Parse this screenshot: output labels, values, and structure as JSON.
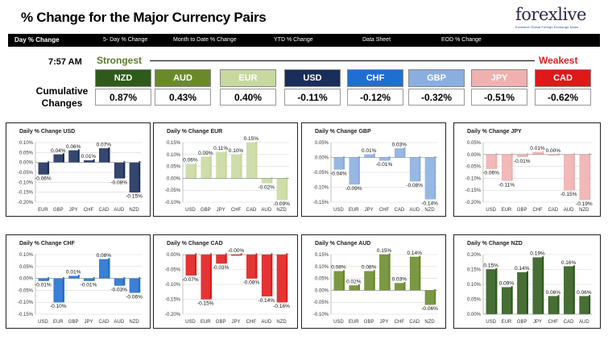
{
  "header": {
    "title": "% Change for the Major Currency Pairs",
    "logo_text": "forexlive",
    "logo_subtitle": "Exclusive Global Foreign Exchange News"
  },
  "nav": {
    "items": [
      "Day % Change",
      "5- Day % Change",
      "Month to Date % Change",
      "YTD % Change",
      "Data Sheet",
      "EOD % Change"
    ]
  },
  "summary": {
    "time": "7:57 AM",
    "strongest_label": "Strongest",
    "weakest_label": "Weakest",
    "cumulative_label_line1": "Cumulative",
    "cumulative_label_line2": "Changes",
    "currencies": [
      {
        "code": "NZD",
        "value": "0.87%",
        "color": "#2e5a1a"
      },
      {
        "code": "AUD",
        "value": "0.43%",
        "color": "#6a8a2a"
      },
      {
        "code": "EUR",
        "value": "0.40%",
        "color": "#c8d8a0"
      },
      {
        "code": "USD",
        "value": "-0.11%",
        "color": "#1a2e5a"
      },
      {
        "code": "CHF",
        "value": "-0.12%",
        "color": "#1f6fd0"
      },
      {
        "code": "GBP",
        "value": "-0.32%",
        "color": "#8aaee0"
      },
      {
        "code": "JPY",
        "value": "-0.51%",
        "color": "#f0b0b0"
      },
      {
        "code": "CAD",
        "value": "-0.62%",
        "color": "#e01818"
      }
    ]
  },
  "chart_data": [
    {
      "type": "bar",
      "title": "Daily % Change USD",
      "color": "#1a2e5a",
      "categories": [
        "EUR",
        "GBP",
        "JPY",
        "CHF",
        "CAD",
        "AUD",
        "NZD"
      ],
      "values": [
        -0.06,
        0.04,
        0.06,
        0.01,
        0.07,
        -0.08,
        -0.15
      ],
      "labels": [
        "-0.06%",
        "0.04%",
        "0.06%",
        "0.01%",
        "0.07%",
        "-0.08%",
        "-0.15%"
      ],
      "ylim": [
        -0.2,
        0.1
      ],
      "ticks": [
        0.1,
        0.05,
        0.0,
        -0.05,
        -0.1,
        -0.15,
        -0.2
      ],
      "tick_labels": [
        "0.10%",
        "0.05%",
        "0.00%",
        "-0.05%",
        "-0.10%",
        "-0.15%",
        "-0.20%"
      ]
    },
    {
      "type": "bar",
      "title": "Daily % Change EUR",
      "color": "#c8d8a0",
      "categories": [
        "USD",
        "GBP",
        "JPY",
        "CHF",
        "CAD",
        "AUD",
        "NZD"
      ],
      "values": [
        0.06,
        0.09,
        0.11,
        0.1,
        0.15,
        -0.02,
        -0.09
      ],
      "labels": [
        "0.06%",
        "0.09%",
        "0.11%",
        "0.10%",
        "0.15%",
        "-0.02%",
        "-0.09%"
      ],
      "ylim": [
        -0.1,
        0.15
      ],
      "ticks": [
        0.15,
        0.1,
        0.05,
        0.0,
        -0.05,
        -0.1
      ],
      "tick_labels": [
        "0.15%",
        "0.10%",
        "0.05%",
        "0.00%",
        "-0.05%",
        "-0.10%"
      ]
    },
    {
      "type": "bar",
      "title": "Daily % Change GBP",
      "color": "#8aaee0",
      "categories": [
        "USD",
        "EUR",
        "JPY",
        "CHF",
        "CAD",
        "AUD",
        "NZD"
      ],
      "values": [
        -0.04,
        -0.09,
        0.01,
        -0.01,
        0.03,
        -0.08,
        -0.14
      ],
      "labels": [
        "-0.04%",
        "-0.09%",
        "0.01%",
        "-0.01%",
        "0.03%",
        "-0.08%",
        "-0.14%"
      ],
      "ylim": [
        -0.15,
        0.05
      ],
      "ticks": [
        0.05,
        0.0,
        -0.05,
        -0.1,
        -0.15
      ],
      "tick_labels": [
        "0.05%",
        "0.00%",
        "-0.05%",
        "-0.10%",
        "-0.15%"
      ]
    },
    {
      "type": "bar",
      "title": "Daily % Change JPY",
      "color": "#f0b0b0",
      "categories": [
        "USD",
        "EUR",
        "GBP",
        "CHF",
        "CAD",
        "AUD",
        "NZD"
      ],
      "values": [
        -0.06,
        -0.11,
        -0.01,
        0.01,
        0.0,
        -0.15,
        -0.19
      ],
      "labels": [
        "-0.06%",
        "-0.11%",
        "-0.01%",
        "0.01%",
        "0.00%",
        "-0.15%",
        "-0.19%"
      ],
      "ylim": [
        -0.2,
        0.05
      ],
      "ticks": [
        0.05,
        0.0,
        -0.05,
        -0.1,
        -0.15,
        -0.2
      ],
      "tick_labels": [
        "0.05%",
        "0.00%",
        "-0.05%",
        "-0.10%",
        "-0.15%",
        "-0.20%"
      ]
    },
    {
      "type": "bar",
      "title": "Daily % Change CHF",
      "color": "#1f6fd0",
      "categories": [
        "USD",
        "EUR",
        "GBP",
        "JPY",
        "CAD",
        "AUD",
        "NZD"
      ],
      "values": [
        -0.01,
        -0.1,
        0.01,
        -0.01,
        0.08,
        -0.03,
        -0.06
      ],
      "labels": [
        "-0.01%",
        "-0.10%",
        "0.01%",
        "-0.01%",
        "0.08%",
        "-0.03%",
        "-0.06%"
      ],
      "ylim": [
        -0.15,
        0.1
      ],
      "ticks": [
        0.1,
        0.05,
        0.0,
        -0.05,
        -0.1,
        -0.15
      ],
      "tick_labels": [
        "0.10%",
        "0.05%",
        "0.00%",
        "-0.05%",
        "-0.10%",
        "-0.15%"
      ]
    },
    {
      "type": "bar",
      "title": "Daily % Change CAD",
      "color": "#e01818",
      "categories": [
        "USD",
        "EUR",
        "GBP",
        "JPY",
        "CHF",
        "AUD",
        "NZD"
      ],
      "values": [
        -0.07,
        -0.15,
        -0.03,
        -0.0,
        -0.08,
        -0.14,
        -0.16
      ],
      "labels": [
        "-0.07%",
        "-0.15%",
        "-0.03%",
        "-0.00%",
        "-0.08%",
        "-0.14%",
        "-0.16%"
      ],
      "ylim": [
        -0.2,
        0.0
      ],
      "ticks": [
        0.0,
        -0.05,
        -0.1,
        -0.15,
        -0.2
      ],
      "tick_labels": [
        "0.00%",
        "-0.05%",
        "-0.10%",
        "-0.15%",
        "-0.20%"
      ]
    },
    {
      "type": "bar",
      "title": "Daily % Change AUD",
      "color": "#6a8a2a",
      "categories": [
        "USD",
        "EUR",
        "GBP",
        "JPY",
        "CHF",
        "CAD",
        "NZD"
      ],
      "values": [
        0.08,
        0.02,
        0.08,
        0.15,
        0.03,
        0.14,
        -0.06
      ],
      "labels": [
        "0.08%",
        "0.02%",
        "0.08%",
        "0.15%",
        "0.03%",
        "0.14%",
        "-0.06%"
      ],
      "ylim": [
        -0.1,
        0.15
      ],
      "ticks": [
        0.15,
        0.1,
        0.05,
        0.0,
        -0.05,
        -0.1
      ],
      "tick_labels": [
        "0.15%",
        "0.10%",
        "0.05%",
        "0.00%",
        "-0.05%",
        "-0.10%"
      ]
    },
    {
      "type": "bar",
      "title": "Daily % Change NZD",
      "color": "#2e5a1a",
      "categories": [
        "USD",
        "EUR",
        "GBP",
        "JPY",
        "CHF",
        "CAD",
        "AUD"
      ],
      "values": [
        0.15,
        0.09,
        0.14,
        0.19,
        0.06,
        0.16,
        0.06
      ],
      "labels": [
        "0.15%",
        "0.09%",
        "0.14%",
        "0.19%",
        "0.06%",
        "0.16%",
        "0.06%"
      ],
      "ylim": [
        0.0,
        0.2
      ],
      "ticks": [
        0.2,
        0.15,
        0.1,
        0.05,
        0.0
      ],
      "tick_labels": [
        "0.20%",
        "0.15%",
        "0.10%",
        "0.05%",
        "0.00%"
      ]
    }
  ]
}
